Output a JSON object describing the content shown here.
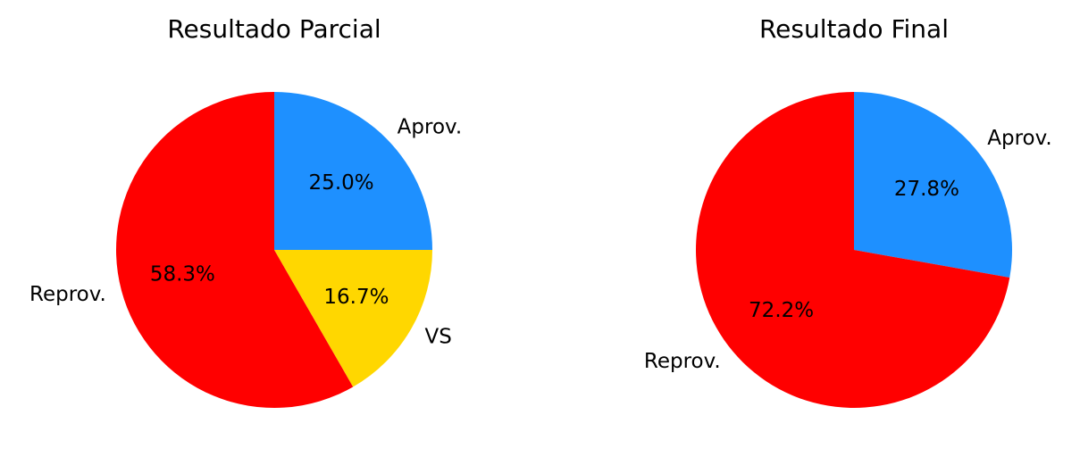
{
  "chart_data": [
    {
      "type": "pie",
      "title": "Resultado Parcial",
      "labels": [
        "Aprov.",
        "VS",
        "Reprov."
      ],
      "values": [
        25.0,
        16.7,
        58.3
      ],
      "percent_labels": [
        "25.0%",
        "16.7%",
        "58.3%"
      ],
      "colors": [
        "#1e90ff",
        "#ffd700",
        "#ff0000"
      ],
      "start_angle_deg": 90,
      "direction": "clockwise",
      "legend": false
    },
    {
      "type": "pie",
      "title": "Resultado Final",
      "labels": [
        "Aprov.",
        "Reprov."
      ],
      "values": [
        27.8,
        72.2
      ],
      "percent_labels": [
        "27.8%",
        "72.2%"
      ],
      "colors": [
        "#1e90ff",
        "#ff0000"
      ],
      "start_angle_deg": 90,
      "direction": "clockwise",
      "legend": false
    }
  ]
}
